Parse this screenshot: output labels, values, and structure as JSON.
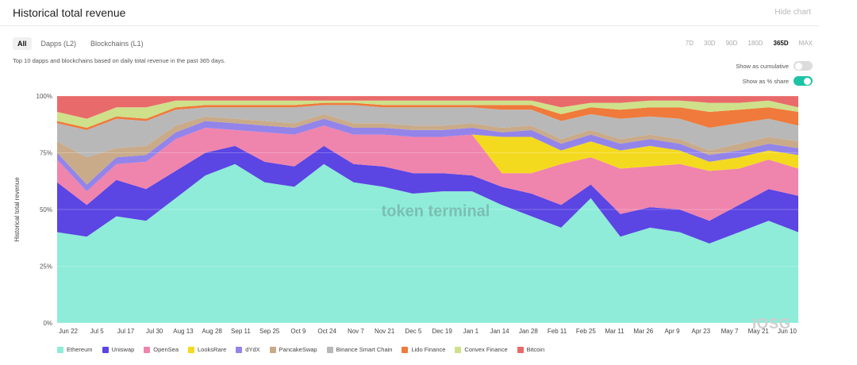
{
  "header": {
    "title": "Historical total revenue",
    "hide_label": "Hide chart"
  },
  "tabs": [
    {
      "label": "All",
      "active": true
    },
    {
      "label": "Dapps (L2)",
      "active": false
    },
    {
      "label": "Blockchains (L1)",
      "active": false
    }
  ],
  "ranges": [
    {
      "label": "7D",
      "active": false
    },
    {
      "label": "30D",
      "active": false
    },
    {
      "label": "90D",
      "active": false
    },
    {
      "label": "180D",
      "active": false
    },
    {
      "label": "365D",
      "active": true
    },
    {
      "label": "MAX",
      "active": false
    }
  ],
  "subtitle": "Top 10 dapps and blockchains based on daily total revenue in the past 365 days.",
  "toggles": {
    "cumulative": {
      "label": "Show as cumulative",
      "on": false
    },
    "percent": {
      "label": "Show as % share",
      "on": true
    }
  },
  "watermark": "token terminal",
  "logo_text": "IOSG",
  "colors": {
    "Ethereum": "#8eecd9",
    "Uniswap": "#5b45e3",
    "OpenSea": "#ef84ad",
    "LooksRare": "#f3da1f",
    "dYdX": "#9384ea",
    "PancakeSwap": "#c9ab8a",
    "Binance Smart Chain": "#b8b8b8",
    "Lido Finance": "#ef7a3b",
    "Convex Finance": "#cfe08a",
    "Bitcoin": "#e96a6a"
  },
  "chart_data": {
    "type": "area",
    "stacked": true,
    "normalized": true,
    "ylabel": "Historical total revenue",
    "yticks": [
      "0%",
      "25%",
      "50%",
      "75%",
      "100%"
    ],
    "ylim": [
      0,
      100
    ],
    "xlabels": [
      "Jun 22",
      "Jul 5",
      "Jul 17",
      "Jul 30",
      "Aug 13",
      "Aug 28",
      "Sep 11",
      "Sep 25",
      "Oct 9",
      "Oct 24",
      "Nov 7",
      "Nov 21",
      "Dec 5",
      "Dec 19",
      "Jan 1",
      "Jan 14",
      "Jan 28",
      "Feb 11",
      "Feb 25",
      "Mar 11",
      "Mar 26",
      "Apr 9",
      "Apr 23",
      "May 7",
      "May 21",
      "Jun 10"
    ],
    "x": [
      "Jun 22",
      "Jul 5",
      "Jul 17",
      "Jul 30",
      "Aug 13",
      "Aug 28",
      "Sep 11",
      "Sep 25",
      "Oct 9",
      "Oct 24",
      "Nov 7",
      "Nov 21",
      "Dec 5",
      "Dec 19",
      "Jan 1",
      "Jan 14",
      "Jan 28",
      "Feb 11",
      "Feb 25",
      "Mar 11",
      "Mar 26",
      "Apr 9",
      "Apr 23",
      "May 7",
      "May 21",
      "Jun 10"
    ],
    "series": [
      {
        "name": "Ethereum",
        "values": [
          40,
          38,
          47,
          45,
          55,
          65,
          70,
          62,
          60,
          70,
          62,
          60,
          57,
          58,
          58,
          52,
          47,
          42,
          55,
          38,
          42,
          40,
          35,
          40,
          45,
          40
        ]
      },
      {
        "name": "Uniswap",
        "values": [
          22,
          14,
          16,
          14,
          12,
          10,
          8,
          9,
          9,
          8,
          8,
          9,
          9,
          8,
          7,
          8,
          10,
          10,
          6,
          10,
          9,
          10,
          10,
          12,
          14,
          16
        ]
      },
      {
        "name": "OpenSea",
        "values": [
          10,
          6,
          7,
          12,
          14,
          11,
          7,
          13,
          14,
          9,
          13,
          14,
          16,
          16,
          18,
          6,
          9,
          18,
          12,
          20,
          18,
          20,
          22,
          16,
          13,
          12
        ]
      },
      {
        "name": "LooksRare",
        "values": [
          0,
          0,
          0,
          0,
          0,
          0,
          0,
          0,
          0,
          0,
          0,
          0,
          0,
          0,
          0,
          16,
          16,
          6,
          7,
          8,
          9,
          6,
          4,
          5,
          4,
          6
        ]
      },
      {
        "name": "dYdX",
        "values": [
          3,
          3,
          3,
          3,
          3,
          3,
          3,
          3,
          3,
          3,
          3,
          3,
          3,
          3,
          3,
          2,
          3,
          3,
          3,
          3,
          3,
          3,
          3,
          3,
          3,
          3
        ]
      },
      {
        "name": "PancakeSwap",
        "values": [
          5,
          12,
          4,
          4,
          3,
          2,
          2,
          2,
          2,
          2,
          2,
          2,
          2,
          2,
          2,
          2,
          2,
          2,
          2,
          2,
          2,
          2,
          2,
          3,
          3,
          3
        ]
      },
      {
        "name": "Binance Smart Chain",
        "values": [
          8,
          12,
          13,
          11,
          7,
          4,
          5,
          6,
          7,
          4,
          8,
          7,
          8,
          8,
          7,
          8,
          7,
          8,
          7,
          9,
          8,
          9,
          10,
          9,
          8,
          7
        ]
      },
      {
        "name": "Lido Finance",
        "values": [
          1,
          1,
          1,
          1,
          1,
          1,
          1,
          1,
          1,
          1,
          1,
          1,
          1,
          1,
          1,
          2,
          2,
          3,
          3,
          4,
          4,
          5,
          7,
          6,
          5,
          6
        ]
      },
      {
        "name": "Convex Finance",
        "values": [
          4,
          4,
          4,
          5,
          3,
          2,
          2,
          2,
          2,
          1,
          1,
          2,
          2,
          2,
          2,
          2,
          2,
          3,
          2,
          3,
          3,
          3,
          4,
          3,
          3,
          2
        ]
      },
      {
        "name": "Bitcoin",
        "values": [
          7,
          10,
          5,
          5,
          2,
          2,
          2,
          2,
          2,
          2,
          2,
          2,
          2,
          2,
          2,
          2,
          2,
          5,
          3,
          3,
          2,
          2,
          3,
          3,
          2,
          5
        ]
      }
    ]
  }
}
